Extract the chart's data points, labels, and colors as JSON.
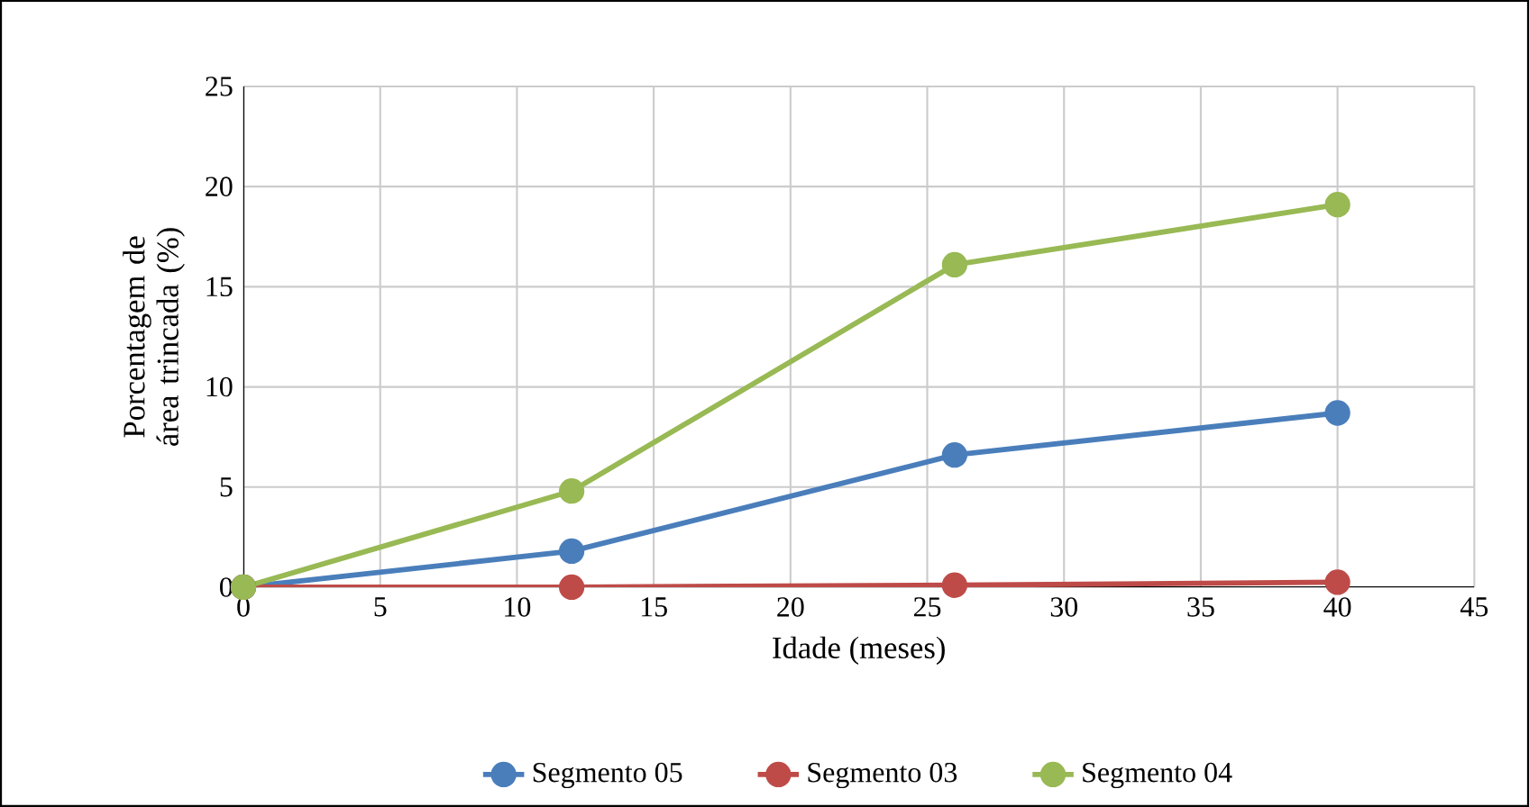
{
  "chart_data": {
    "type": "line",
    "xlabel": "Idade (meses)",
    "ylabel": "Porcentagem de área trincada (%)",
    "xlim": [
      0,
      45
    ],
    "xticks": [
      0,
      5,
      10,
      15,
      20,
      25,
      30,
      35,
      40,
      45
    ],
    "ylim": [
      0,
      25
    ],
    "yticks": [
      0,
      5,
      10,
      15,
      20,
      25
    ],
    "grid": true,
    "legend": "bottom",
    "marker": "circle",
    "line_style": "solid",
    "series": [
      {
        "name": "Segmento 05",
        "color": "#4a7ebb",
        "x": [
          0,
          12,
          26,
          40
        ],
        "values": [
          0,
          1.8,
          6.6,
          8.7
        ]
      },
      {
        "name": "Segmento 03",
        "color": "#be4b48",
        "x": [
          0,
          12,
          26,
          40
        ],
        "values": [
          0,
          0,
          0.1,
          0.25
        ]
      },
      {
        "name": "Segmento 04",
        "color": "#98b954",
        "x": [
          0,
          12,
          26,
          40
        ],
        "values": [
          0,
          4.8,
          16.1,
          19.1
        ]
      }
    ]
  }
}
